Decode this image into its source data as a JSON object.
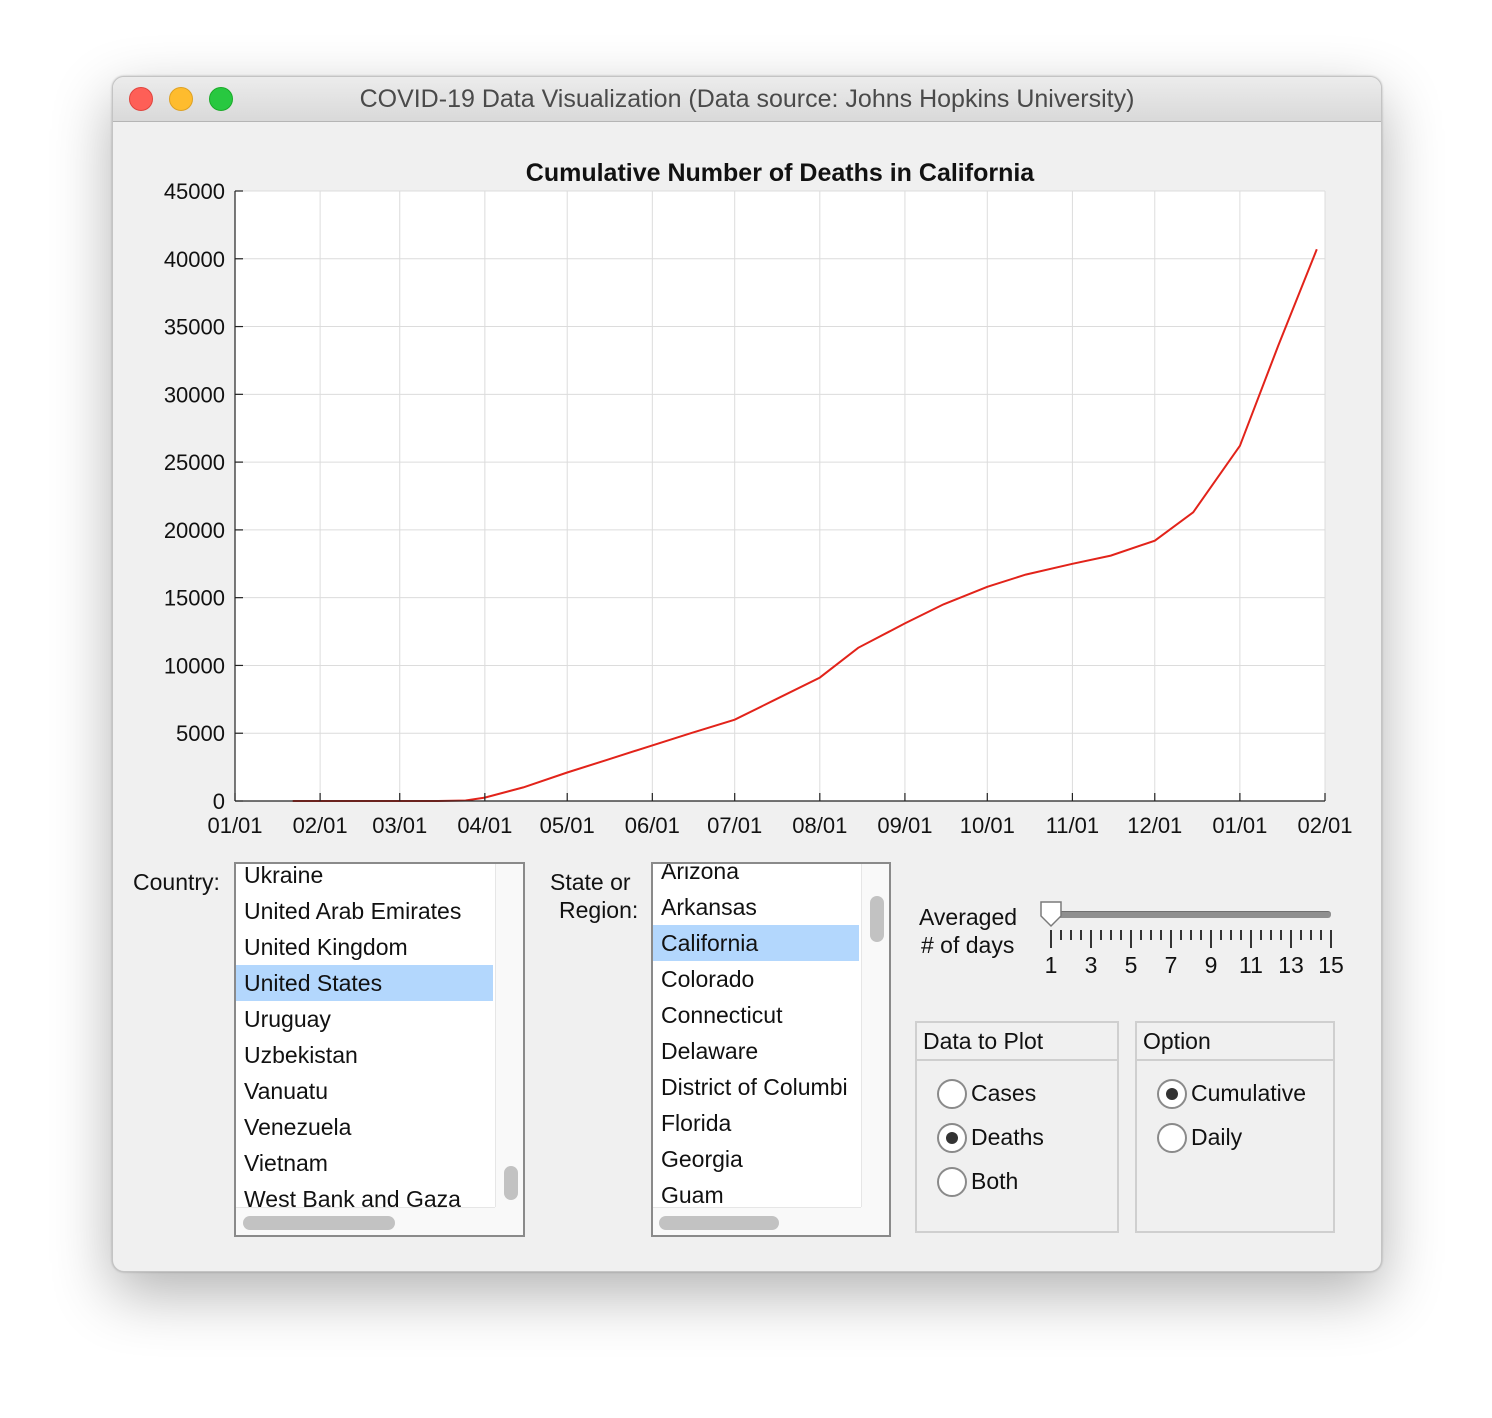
{
  "window": {
    "title": "COVID-19 Data Visualization (Data source: Johns Hopkins University)"
  },
  "chart_data": {
    "type": "line",
    "title": "Cumulative Number of Deaths in California",
    "xlabel": "",
    "ylabel": "",
    "x_tick_labels": [
      "01/01",
      "02/01",
      "03/01",
      "04/01",
      "05/01",
      "06/01",
      "07/01",
      "08/01",
      "09/01",
      "10/01",
      "11/01",
      "12/01",
      "01/01",
      "02/01"
    ],
    "y_ticks": [
      0,
      5000,
      10000,
      15000,
      20000,
      25000,
      30000,
      35000,
      40000,
      45000
    ],
    "xlim": [
      "2020-01-01",
      "2021-02-01"
    ],
    "ylim": [
      0,
      45000
    ],
    "grid": true,
    "series_color": "#e2231a",
    "x": [
      "2020-01-22",
      "2020-02-15",
      "2020-03-15",
      "2020-03-25",
      "2020-04-01",
      "2020-04-15",
      "2020-05-01",
      "2020-05-15",
      "2020-06-01",
      "2020-06-15",
      "2020-07-01",
      "2020-07-15",
      "2020-08-01",
      "2020-08-15",
      "2020-09-01",
      "2020-09-15",
      "2020-10-01",
      "2020-10-15",
      "2020-11-01",
      "2020-11-15",
      "2020-12-01",
      "2020-12-15",
      "2021-01-01",
      "2021-01-15",
      "2021-01-29"
    ],
    "y": [
      0,
      0,
      0,
      40,
      250,
      1000,
      2100,
      3000,
      4100,
      5000,
      6000,
      7400,
      9100,
      11300,
      13100,
      14500,
      15800,
      16700,
      17500,
      18100,
      19200,
      21300,
      26200,
      33600,
      40700
    ]
  },
  "controls": {
    "country_label": "Country:",
    "country_items": [
      "Ukraine",
      "United Arab Emirates",
      "United Kingdom",
      "United States",
      "Uruguay",
      "Uzbekistan",
      "Vanuatu",
      "Venezuela",
      "Vietnam",
      "West Bank and Gaza"
    ],
    "country_selected": "United States",
    "state_label_1": "State or",
    "state_label_2": "Region:",
    "state_items": [
      "Arizona",
      "Arkansas",
      "California",
      "Colorado",
      "Connecticut",
      "Delaware",
      "District of Columbi",
      "Florida",
      "Georgia",
      "Guam"
    ],
    "state_selected": "California",
    "slider_label_1": "Averaged",
    "slider_label_2": "# of days",
    "slider_value": 1,
    "slider_min": 1,
    "slider_max": 15,
    "slider_tick_labels": [
      "1",
      "3",
      "5",
      "7",
      "9",
      "11",
      "13",
      "15"
    ],
    "data_to_plot": {
      "title": "Data to Plot",
      "options": [
        "Cases",
        "Deaths",
        "Both"
      ],
      "selected": "Deaths"
    },
    "option": {
      "title": "Option",
      "options": [
        "Cumulative",
        "Daily"
      ],
      "selected": "Cumulative"
    }
  }
}
